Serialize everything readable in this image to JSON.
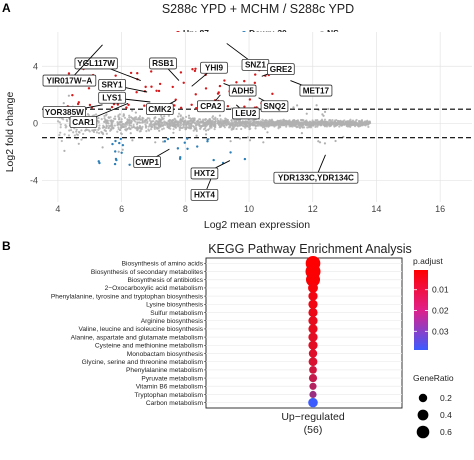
{
  "panel_a": {
    "letter": "A",
    "chart_data": {
      "type": "scatter",
      "title": "S288c YPD + MCHM / S288c YPD",
      "xlabel": "Log2 mean expression",
      "ylabel": "Log2 fold change",
      "xlim": [
        3.5,
        17
      ],
      "ylim": [
        -5.5,
        6.4
      ],
      "xticks": [
        "4",
        "6",
        "8",
        "10",
        "12",
        "14",
        "16"
      ],
      "yticks": [
        "-4",
        "0",
        "4"
      ],
      "threshold_lines": [
        -1,
        1
      ],
      "grid": true,
      "legend": {
        "placement": "top",
        "entries": [
          {
            "label": "Up: 87",
            "color": "#d7191c"
          },
          {
            "label": "Down: 30",
            "color": "#2c7fb8"
          },
          {
            "label": "NS",
            "color": "#a9a9a9"
          }
        ]
      },
      "labels": [
        {
          "text": "YGL117W",
          "x": 5.2,
          "y": 4.2,
          "px": 6.6,
          "py": 3.0
        },
        {
          "text": "RSB1",
          "x": 7.3,
          "y": 4.2,
          "px": 7.8,
          "py": 3.0
        },
        {
          "text": "YHI9",
          "x": 8.9,
          "y": 3.9,
          "px": 8.2,
          "py": 2.6
        },
        {
          "text": "SNZ1",
          "x": 10.2,
          "y": 4.1,
          "px": 9.3,
          "py": 5.6
        },
        {
          "text": "GRE2",
          "x": 11.0,
          "y": 3.8,
          "px": 10.4,
          "py": 3.3
        },
        {
          "text": "YIR017W−A",
          "x": 3.9,
          "y": 3.0,
          "px": 5.4,
          "py": 5.5
        },
        {
          "text": "SRY1",
          "x": 5.7,
          "y": 2.7,
          "px": 6.8,
          "py": 2.2
        },
        {
          "text": "MET17",
          "x": 12.1,
          "y": 2.3,
          "px": 11.3,
          "py": 3.0
        },
        {
          "text": "ADH5",
          "x": 9.8,
          "y": 2.3,
          "px": 9.2,
          "py": 2.8
        },
        {
          "text": "LYS1",
          "x": 5.7,
          "y": 1.8,
          "px": 6.9,
          "py": 1.5
        },
        {
          "text": "CMK2",
          "x": 7.2,
          "y": 1.0,
          "px": 7.7,
          "py": 1.6
        },
        {
          "text": "CPA2",
          "x": 8.8,
          "y": 1.2,
          "px": 9.1,
          "py": 2.0
        },
        {
          "text": "SNQ2",
          "x": 10.8,
          "y": 1.2,
          "px": 10.3,
          "py": 1.8
        },
        {
          "text": "YOR385W",
          "x": 4.2,
          "y": 0.8,
          "px": 5.4,
          "py": 1.3
        },
        {
          "text": "LEU2",
          "x": 9.9,
          "y": 0.7,
          "px": 9.6,
          "py": 1.3
        },
        {
          "text": "CAR1",
          "x": 4.8,
          "y": 0.1,
          "px": 6.2,
          "py": 1.4
        },
        {
          "text": "CWP1",
          "x": 6.8,
          "y": -2.7,
          "px": 7.5,
          "py": -1.8
        },
        {
          "text": "HXT2",
          "x": 8.6,
          "y": -3.5,
          "px": 9.4,
          "py": -2.6
        },
        {
          "text": "YDR133C,YDR134C",
          "x": 12.1,
          "y": -3.8,
          "px": 12.4,
          "py": -2.2
        },
        {
          "text": "HXT4",
          "x": 8.6,
          "y": -5.0,
          "px": 8.8,
          "py": -3.9
        }
      ]
    }
  },
  "panel_b": {
    "letter": "B",
    "chart_data": {
      "type": "scatter",
      "subtype": "dotplot",
      "title": "KEGG Pathway Enrichment Analysis",
      "categories_x": [
        "Up−regulated\n(56)"
      ],
      "x_label_lines": [
        "Up−regulated",
        "(56)"
      ],
      "pathways": [
        {
          "name": "Biosynthesis of amino acids",
          "gene_ratio": 0.58,
          "p_adjust": 0.0005
        },
        {
          "name": "Biosynthesis of secondary metabolites",
          "gene_ratio": 0.62,
          "p_adjust": 0.0008
        },
        {
          "name": "Biosynthesis of antibiotics",
          "gene_ratio": 0.52,
          "p_adjust": 0.001
        },
        {
          "name": "2−Oxocarboxylic acid metabolism",
          "gene_ratio": 0.2,
          "p_adjust": 0.002
        },
        {
          "name": "Phenylalanine, tyrosine and tryptophan biosynthesis",
          "gene_ratio": 0.16,
          "p_adjust": 0.003
        },
        {
          "name": "Lysine biosynthesis",
          "gene_ratio": 0.16,
          "p_adjust": 0.003
        },
        {
          "name": "Sulfur metabolism",
          "gene_ratio": 0.16,
          "p_adjust": 0.004
        },
        {
          "name": "Arginine biosynthesis",
          "gene_ratio": 0.16,
          "p_adjust": 0.005
        },
        {
          "name": "Valine, leucine and isoleucine biosynthesis",
          "gene_ratio": 0.16,
          "p_adjust": 0.005
        },
        {
          "name": "Alanine, aspartate and glutamate metabolism",
          "gene_ratio": 0.16,
          "p_adjust": 0.006
        },
        {
          "name": "Cysteine and methionine metabolism",
          "gene_ratio": 0.16,
          "p_adjust": 0.006
        },
        {
          "name": "Monobactam biosynthesis",
          "gene_ratio": 0.12,
          "p_adjust": 0.007
        },
        {
          "name": "Glycine, serine and threonine metabolism",
          "gene_ratio": 0.14,
          "p_adjust": 0.008
        },
        {
          "name": "Phenylalanine metabolism",
          "gene_ratio": 0.09,
          "p_adjust": 0.01
        },
        {
          "name": "Pyruvate metabolism",
          "gene_ratio": 0.11,
          "p_adjust": 0.012
        },
        {
          "name": "Vitamin B6 metabolism",
          "gene_ratio": 0.07,
          "p_adjust": 0.015
        },
        {
          "name": "Tryptophan metabolism",
          "gene_ratio": 0.07,
          "p_adjust": 0.02
        },
        {
          "name": "Carbon metabolism",
          "gene_ratio": 0.18,
          "p_adjust": 0.039
        }
      ],
      "color_legend": {
        "title": "p.adjust",
        "ticks": [
          "0.01",
          "0.02",
          "0.03"
        ],
        "range": [
          0.0005,
          0.039
        ],
        "low_color": "#ff0000",
        "high_color": "#3b5bff"
      },
      "size_legend": {
        "title": "GeneRatio",
        "values": [
          0.2,
          0.4,
          0.6
        ],
        "labels": [
          "0.2",
          "0.4",
          "0.6"
        ]
      }
    }
  }
}
